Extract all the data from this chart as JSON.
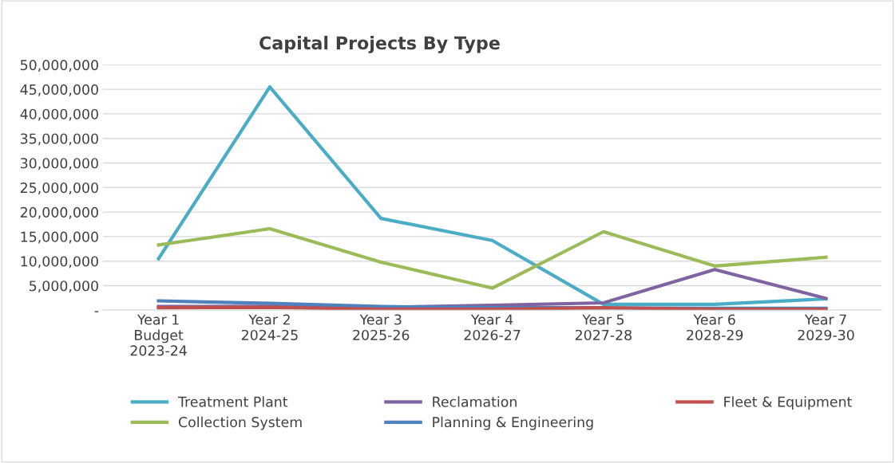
{
  "chart_data": {
    "type": "line",
    "title": "Capital Projects By Type",
    "categories": [
      "Year 1\nBudget\n2023-24",
      "Year 2\n2024-25",
      "Year 3\n2025-26",
      "Year 4\n2026-27",
      "Year 5\n2027-28",
      "Year 6\n2028-29",
      "Year 7\n2029-30"
    ],
    "series": [
      {
        "name": "Treatment Plant",
        "color": "#4bacc6",
        "values": [
          10500000,
          45500000,
          18700000,
          14200000,
          1200000,
          1200000,
          2300000
        ]
      },
      {
        "name": "Collection System",
        "color": "#9bbb59",
        "values": [
          13300000,
          16600000,
          9800000,
          4500000,
          16000000,
          9000000,
          10800000
        ]
      },
      {
        "name": "Reclamation",
        "color": "#8064a2",
        "values": [
          750000,
          800000,
          600000,
          1000000,
          1500000,
          8300000,
          2400000
        ]
      },
      {
        "name": "Planning & Engineering",
        "color": "#4f81bd",
        "values": [
          1900000,
          1400000,
          750000,
          500000,
          500000,
          400000,
          400000
        ]
      },
      {
        "name": "Fleet & Equipment",
        "color": "#c0504d",
        "values": [
          500000,
          600000,
          200000,
          200000,
          500000,
          200000,
          200000
        ]
      }
    ],
    "ylim": [
      0,
      50000000
    ],
    "yticks": [
      {
        "value": 0,
        "label": "-"
      },
      {
        "value": 5000000,
        "label": "5,000,000"
      },
      {
        "value": 10000000,
        "label": "10,000,000"
      },
      {
        "value": 15000000,
        "label": "15,000,000"
      },
      {
        "value": 20000000,
        "label": "20,000,000"
      },
      {
        "value": 25000000,
        "label": "25,000,000"
      },
      {
        "value": 30000000,
        "label": "30,000,000"
      },
      {
        "value": 35000000,
        "label": "35,000,000"
      },
      {
        "value": 40000000,
        "label": "40,000,000"
      },
      {
        "value": 45000000,
        "label": "45,000,000"
      },
      {
        "value": 50000000,
        "label": "50,000,000"
      }
    ],
    "grid": "y",
    "legend": "bottom",
    "marker": "none",
    "line_style": "solid"
  }
}
